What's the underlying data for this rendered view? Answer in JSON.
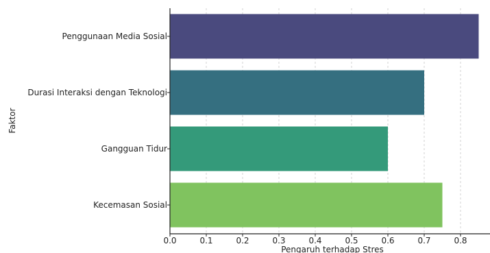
{
  "chart_data": {
    "type": "bar",
    "orientation": "horizontal",
    "categories": [
      "Penggunaan Media Sosial",
      "Durasi Interaksi dengan Teknologi",
      "Gangguan Tidur",
      "Kecemasan Sosial"
    ],
    "values": [
      0.85,
      0.7,
      0.6,
      0.75
    ],
    "colors": [
      "#4a4a7e",
      "#356f80",
      "#349a7a",
      "#80c35f"
    ],
    "title": "",
    "xlabel": "Pengaruh terhadap Stres",
    "ylabel": "Faktor",
    "xlim": [
      0,
      0.88
    ],
    "xticks": [
      "0.0",
      "0.1",
      "0.2",
      "0.3",
      "0.4",
      "0.5",
      "0.6",
      "0.7",
      "0.8"
    ],
    "grid": "x-dashed"
  }
}
